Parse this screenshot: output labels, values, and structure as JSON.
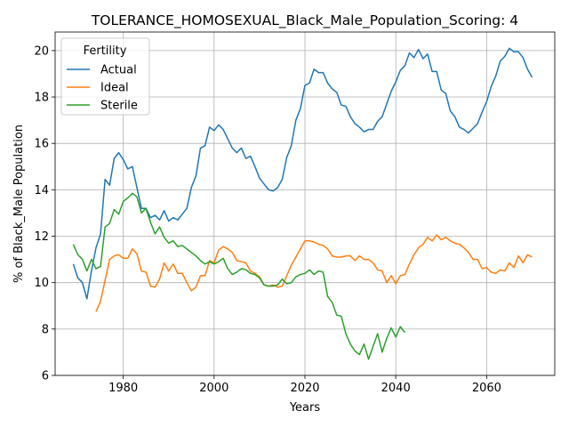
{
  "chart_data": {
    "type": "line",
    "title": "TOLERANCE_HOMOSEXUAL_Black_Male_Population_Scoring: 4",
    "xlabel": "Years",
    "ylabel": "% of Black_Male Population",
    "xlim": [
      1965,
      2075
    ],
    "ylim": [
      6,
      20.8
    ],
    "xticks": [
      1980,
      2000,
      2020,
      2040,
      2060
    ],
    "yticks": [
      6,
      8,
      10,
      12,
      14,
      16,
      18,
      20
    ],
    "grid": true,
    "legend": {
      "title": "Fertility",
      "position": "top-left"
    },
    "colors": {
      "Actual": "#1f77b4",
      "Ideal": "#ff7f0e",
      "Sterile": "#2ca02c"
    },
    "series": [
      {
        "name": "Actual",
        "x": [
          1969,
          1970,
          1971,
          1972,
          1973,
          1974,
          1975,
          1976,
          1977,
          1978,
          1979,
          1980,
          1981,
          1982,
          1983,
          1984,
          1985,
          1986,
          1987,
          1988,
          1989,
          1990,
          1991,
          1992,
          1993,
          1994,
          1995,
          1996,
          1997,
          1998,
          1999,
          2000,
          2001,
          2002,
          2003,
          2004,
          2005,
          2006,
          2007,
          2008,
          2009,
          2010,
          2011,
          2012,
          2013,
          2014,
          2015,
          2016,
          2017,
          2018,
          2019,
          2020,
          2021,
          2022,
          2023,
          2024,
          2025,
          2026,
          2027,
          2028,
          2029,
          2030,
          2031,
          2032,
          2033,
          2034,
          2035,
          2036,
          2037,
          2038,
          2039,
          2040,
          2041,
          2042,
          2043,
          2044,
          2045,
          2046,
          2047,
          2048,
          2049,
          2050,
          2051,
          2052,
          2053,
          2054,
          2055,
          2056,
          2057,
          2058,
          2059,
          2060,
          2061,
          2062,
          2063,
          2064,
          2065,
          2066,
          2067,
          2068,
          2069,
          2070
        ],
        "values": [
          10.8,
          10.2,
          10.0,
          9.3,
          10.5,
          11.5,
          12.1,
          14.45,
          14.2,
          15.35,
          15.6,
          15.3,
          14.9,
          15.0,
          14.1,
          13.2,
          13.2,
          12.8,
          12.9,
          12.7,
          13.1,
          12.65,
          12.8,
          12.7,
          12.95,
          13.2,
          14.1,
          14.6,
          15.8,
          15.9,
          16.7,
          16.55,
          16.8,
          16.6,
          16.2,
          15.8,
          15.6,
          15.8,
          15.35,
          15.45,
          15.0,
          14.5,
          14.25,
          14.0,
          13.95,
          14.1,
          14.45,
          15.4,
          15.9,
          17.0,
          17.5,
          18.5,
          18.6,
          19.2,
          19.05,
          19.05,
          18.6,
          18.35,
          18.2,
          17.65,
          17.6,
          17.15,
          16.85,
          16.7,
          16.5,
          16.6,
          16.6,
          16.95,
          17.15,
          17.7,
          18.25,
          18.65,
          19.15,
          19.35,
          19.9,
          19.7,
          20.05,
          19.65,
          19.85,
          19.1,
          19.1,
          18.3,
          18.15,
          17.4,
          17.15,
          16.7,
          16.6,
          16.45,
          16.65,
          16.85,
          17.35,
          17.8,
          18.45,
          18.9,
          19.55,
          19.75,
          20.1,
          19.95,
          19.95,
          19.7,
          19.2,
          18.85
        ]
      },
      {
        "name": "Ideal",
        "x": [
          1974,
          1975,
          1976,
          1977,
          1978,
          1979,
          1980,
          1981,
          1982,
          1983,
          1984,
          1985,
          1986,
          1987,
          1988,
          1989,
          1990,
          1991,
          1992,
          1993,
          1994,
          1995,
          1996,
          1997,
          1998,
          1999,
          2000,
          2001,
          2002,
          2003,
          2004,
          2005,
          2006,
          2007,
          2008,
          2009,
          2010,
          2011,
          2012,
          2013,
          2014,
          2015,
          2016,
          2017,
          2018,
          2019,
          2020,
          2021,
          2022,
          2023,
          2024,
          2025,
          2026,
          2027,
          2028,
          2029,
          2030,
          2031,
          2032,
          2033,
          2034,
          2035,
          2036,
          2037,
          2038,
          2039,
          2040,
          2041,
          2042,
          2043,
          2044,
          2045,
          2046,
          2047,
          2048,
          2049,
          2050,
          2051,
          2052,
          2053,
          2054,
          2055,
          2056,
          2057,
          2058,
          2059,
          2060,
          2061,
          2062,
          2063,
          2064,
          2065,
          2066,
          2067,
          2068,
          2069,
          2070
        ],
        "values": [
          8.75,
          9.2,
          10.1,
          11.0,
          11.15,
          11.2,
          11.05,
          11.05,
          11.45,
          11.25,
          10.5,
          10.45,
          9.85,
          9.8,
          10.15,
          10.85,
          10.5,
          10.8,
          10.4,
          10.4,
          10.0,
          9.65,
          9.8,
          10.3,
          10.3,
          10.95,
          10.85,
          11.4,
          11.55,
          11.45,
          11.3,
          10.95,
          10.9,
          10.85,
          10.5,
          10.4,
          10.25,
          9.9,
          9.85,
          9.9,
          9.8,
          9.85,
          10.3,
          10.75,
          11.1,
          11.45,
          11.8,
          11.8,
          11.75,
          11.65,
          11.6,
          11.45,
          11.15,
          11.1,
          11.1,
          11.15,
          11.15,
          10.95,
          11.15,
          11.0,
          11.0,
          10.85,
          10.55,
          10.5,
          10.0,
          10.3,
          9.95,
          10.3,
          10.35,
          10.8,
          11.2,
          11.5,
          11.65,
          11.95,
          11.8,
          12.05,
          11.85,
          11.95,
          11.8,
          11.7,
          11.65,
          11.5,
          11.3,
          11.0,
          11.0,
          10.6,
          10.65,
          10.45,
          10.4,
          10.55,
          10.5,
          10.85,
          10.65,
          11.15,
          10.85,
          11.2,
          11.1
        ]
      },
      {
        "name": "Sterile",
        "x": [
          1969,
          1970,
          1971,
          1972,
          1973,
          1974,
          1975,
          1976,
          1977,
          1978,
          1979,
          1980,
          1981,
          1982,
          1983,
          1984,
          1985,
          1986,
          1987,
          1988,
          1989,
          1990,
          1991,
          1992,
          1993,
          1994,
          1995,
          1996,
          1997,
          1998,
          1999,
          2000,
          2001,
          2002,
          2003,
          2004,
          2005,
          2006,
          2007,
          2008,
          2009,
          2010,
          2011,
          2012,
          2013,
          2014,
          2015,
          2016,
          2017,
          2018,
          2019,
          2020,
          2021,
          2022,
          2023,
          2024,
          2025,
          2026,
          2027,
          2028,
          2029,
          2030,
          2031,
          2032,
          2033,
          2034,
          2035,
          2036,
          2037,
          2038,
          2039,
          2040,
          2041,
          2042
        ],
        "values": [
          11.65,
          11.2,
          11.0,
          10.5,
          11.0,
          10.6,
          10.7,
          12.4,
          12.55,
          13.15,
          12.95,
          13.5,
          13.65,
          13.85,
          13.7,
          13.0,
          13.2,
          12.6,
          12.1,
          12.4,
          11.95,
          11.7,
          11.8,
          11.55,
          11.6,
          11.45,
          11.3,
          11.15,
          10.95,
          10.8,
          10.9,
          10.8,
          10.9,
          11.05,
          10.6,
          10.35,
          10.45,
          10.6,
          10.55,
          10.4,
          10.35,
          10.2,
          9.9,
          9.85,
          9.85,
          9.9,
          10.15,
          9.95,
          10.0,
          10.25,
          10.35,
          10.4,
          10.55,
          10.35,
          10.5,
          10.45,
          9.4,
          9.15,
          8.6,
          8.55,
          7.8,
          7.35,
          7.05,
          6.9,
          7.35,
          6.7,
          7.25,
          7.8,
          7.0,
          7.6,
          8.05,
          7.65,
          8.1,
          7.85
        ]
      }
    ]
  }
}
